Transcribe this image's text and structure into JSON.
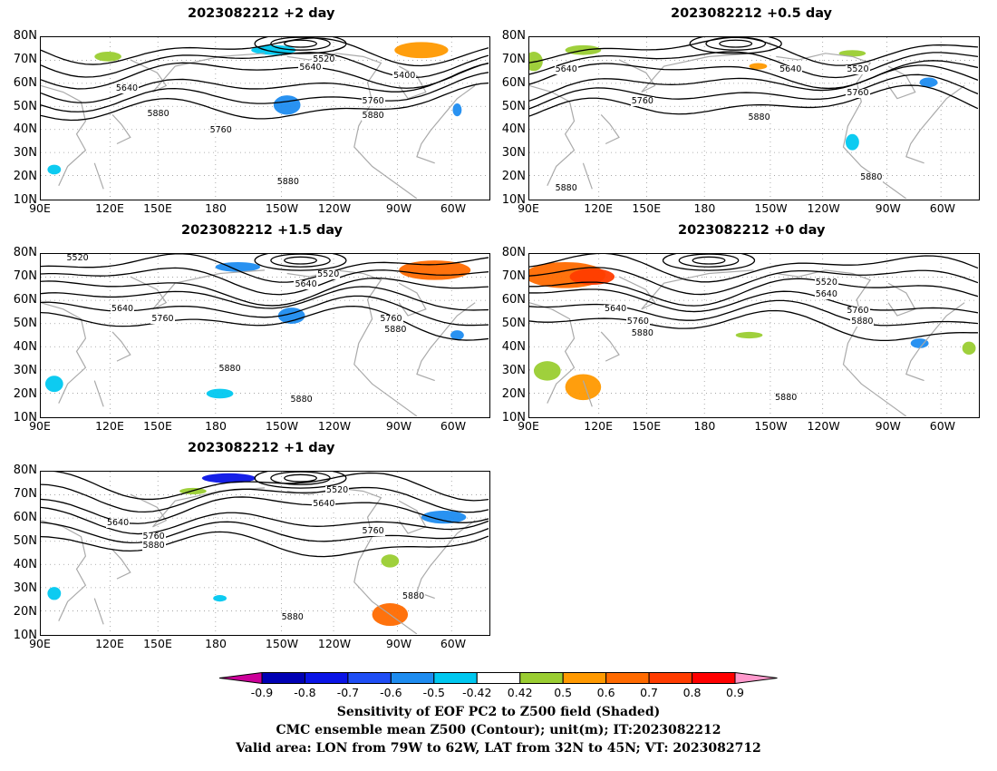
{
  "panels": [
    {
      "title": "2023082212 +2 day",
      "contour_labels": [
        "5520",
        "5640",
        "5400",
        "5640",
        "5760",
        "5880",
        "5880",
        "5760",
        "5880"
      ]
    },
    {
      "title": "2023082212 +0.5 day",
      "contour_labels": [
        "5640",
        "5640",
        "5520",
        "5760",
        "5760",
        "5880",
        "5880",
        "5880"
      ]
    },
    {
      "title": "2023082212 +1.5 day",
      "contour_labels": [
        "5520",
        "5520",
        "5640",
        "5640",
        "5760",
        "5760",
        "5880",
        "5880",
        "5880"
      ]
    },
    {
      "title": "2023082212 +0 day",
      "contour_labels": [
        "5520",
        "5640",
        "5640",
        "5760",
        "5760",
        "5880",
        "5880",
        "5880"
      ]
    },
    {
      "title": "2023082212 +1 day",
      "contour_labels": [
        "5520",
        "5640",
        "5640",
        "5760",
        "5760",
        "5880",
        "5880",
        "5880"
      ]
    }
  ],
  "lat_ticks": [
    "80N",
    "70N",
    "60N",
    "50N",
    "40N",
    "30N",
    "20N",
    "10N"
  ],
  "lon_ticks": [
    "90E",
    "120E",
    "150E",
    "180",
    "150W",
    "120W",
    "90W",
    "60W"
  ],
  "colorbar": {
    "ticks": [
      "-0.9",
      "-0.8",
      "-0.7",
      "-0.6",
      "-0.5",
      "-0.42",
      "0.42",
      "0.5",
      "0.6",
      "0.7",
      "0.8",
      "0.9"
    ],
    "colors": [
      "#cc0099",
      "#0000b4",
      "#0a14e6",
      "#1f4ef5",
      "#1e8cf0",
      "#00c8f0",
      "#ffffff",
      "#9acd32",
      "#ff9900",
      "#ff6a00",
      "#ff3c00",
      "#ff0000",
      "#ff99cc"
    ]
  },
  "captions": [
    "Sensitivity of EOF PC2 to Z500 field (Shaded)",
    "CMC ensemble mean Z500 (Contour); unit(m); IT:2023082212",
    "Valid area: LON from 79W to 62W, LAT from 32N to 45N; VT: 2023082712"
  ]
}
